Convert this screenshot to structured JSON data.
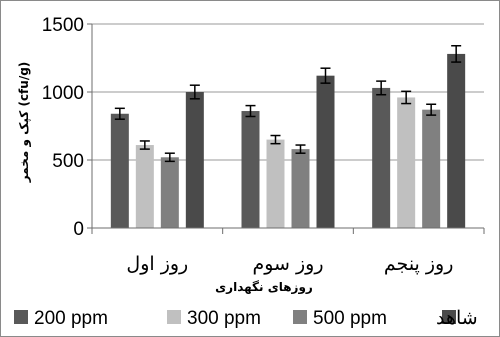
{
  "chart_data": {
    "type": "bar",
    "categories": [
      "روز اول",
      "روز سوم",
      "روز پنجم"
    ],
    "xlabel": "روزهای نگهداری",
    "ylabel": "کپک و مخمر (cfu/g)",
    "ylim": [
      0,
      1500
    ],
    "yticks": [
      "0",
      "500",
      "1000",
      "1500"
    ],
    "grid": true,
    "legend_position": "bottom",
    "series": [
      {
        "name": "200 ppm",
        "color": "#595959",
        "values": [
          840,
          860,
          1030
        ],
        "errors": [
          40,
          40,
          50
        ]
      },
      {
        "name": "300 ppm",
        "color": "#c0c0c0",
        "values": [
          610,
          650,
          960
        ],
        "errors": [
          30,
          30,
          45
        ]
      },
      {
        "name": "500 ppm",
        "color": "#808080",
        "values": [
          520,
          580,
          870
        ],
        "errors": [
          30,
          30,
          40
        ]
      },
      {
        "name": "شاهد",
        "color": "#4a4a4a",
        "values": [
          1000,
          1120,
          1280
        ],
        "errors": [
          50,
          55,
          60
        ]
      }
    ]
  }
}
